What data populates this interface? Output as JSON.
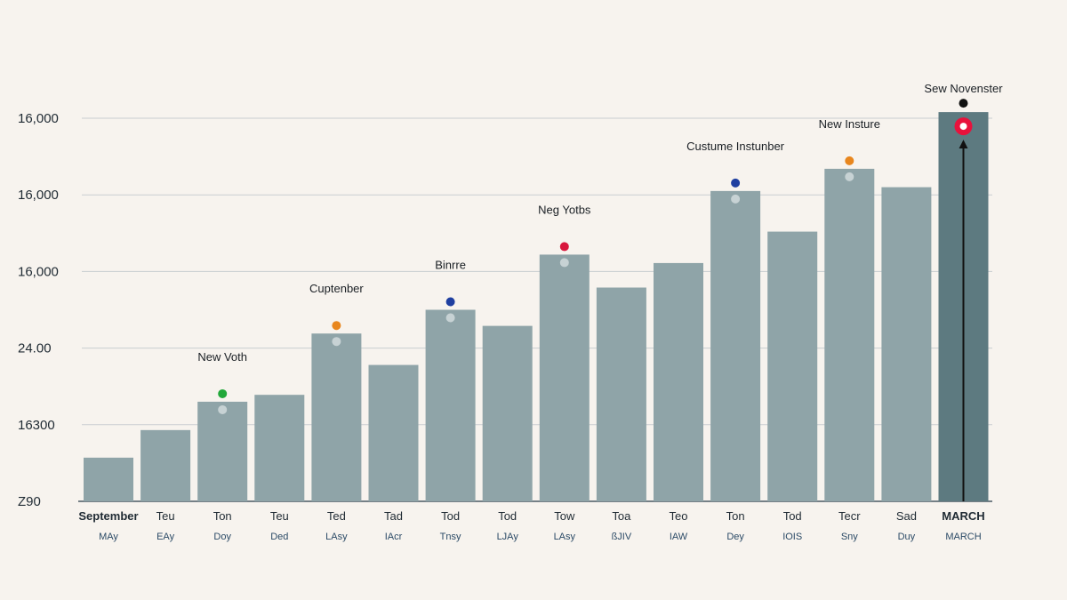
{
  "chart_data": {
    "type": "bar",
    "title": "",
    "xlabel": "",
    "ylabel": "",
    "y_tick_labels": [
      "Z90",
      "16300",
      "24.00",
      "16,000",
      "16,000",
      "16,000"
    ],
    "ylim": [
      0,
      5
    ],
    "grid": true,
    "categories": [
      "September",
      "Teu",
      "Ton",
      "Teu",
      "Ted",
      "Tad",
      "Tod",
      "Tod",
      "Tow",
      "Toa",
      "Teo",
      "Ton",
      "Tod",
      "Tecr",
      "Sad",
      "MARCH"
    ],
    "sub_labels": [
      "MAy",
      "EAy",
      "Doy",
      "Ded",
      "LAsy",
      "IAcr",
      "Tnsy",
      "LJAy",
      "LAsy",
      "ßJIV",
      "IAW",
      "Dey",
      "IOIS",
      "Sny",
      "Duy",
      "MARCH"
    ],
    "values": [
      0.57,
      0.93,
      1.3,
      1.39,
      2.19,
      1.78,
      2.5,
      2.29,
      3.22,
      2.79,
      3.11,
      4.05,
      3.52,
      4.34,
      4.1,
      5.08
    ],
    "highlight_index": 15,
    "colors": {
      "bar": "#8fa4a8",
      "highlight": "#5d7a80",
      "grid": "#c9cdd0",
      "axis": "#4a5a63",
      "marker_inner": "#c7d2d4",
      "target_red": "#e8123c"
    },
    "annotations": [
      {
        "index": 2,
        "text": "New Voth",
        "dot_color": "#22a83a"
      },
      {
        "index": 4,
        "text": "Cuptenber",
        "dot_color": "#e8861e"
      },
      {
        "index": 6,
        "text": "Binrre",
        "dot_color": "#1f3fa0"
      },
      {
        "index": 8,
        "text": "Neg Yotbs",
        "dot_color": "#d8163c"
      },
      {
        "index": 11,
        "text": "Custume Instunber",
        "dot_color": "#1f3fa0"
      },
      {
        "index": 13,
        "text": "New Insture",
        "dot_color": "#e8861e"
      },
      {
        "index": 15,
        "text": "Sew Novenster",
        "dot_color": "#111111"
      }
    ]
  }
}
